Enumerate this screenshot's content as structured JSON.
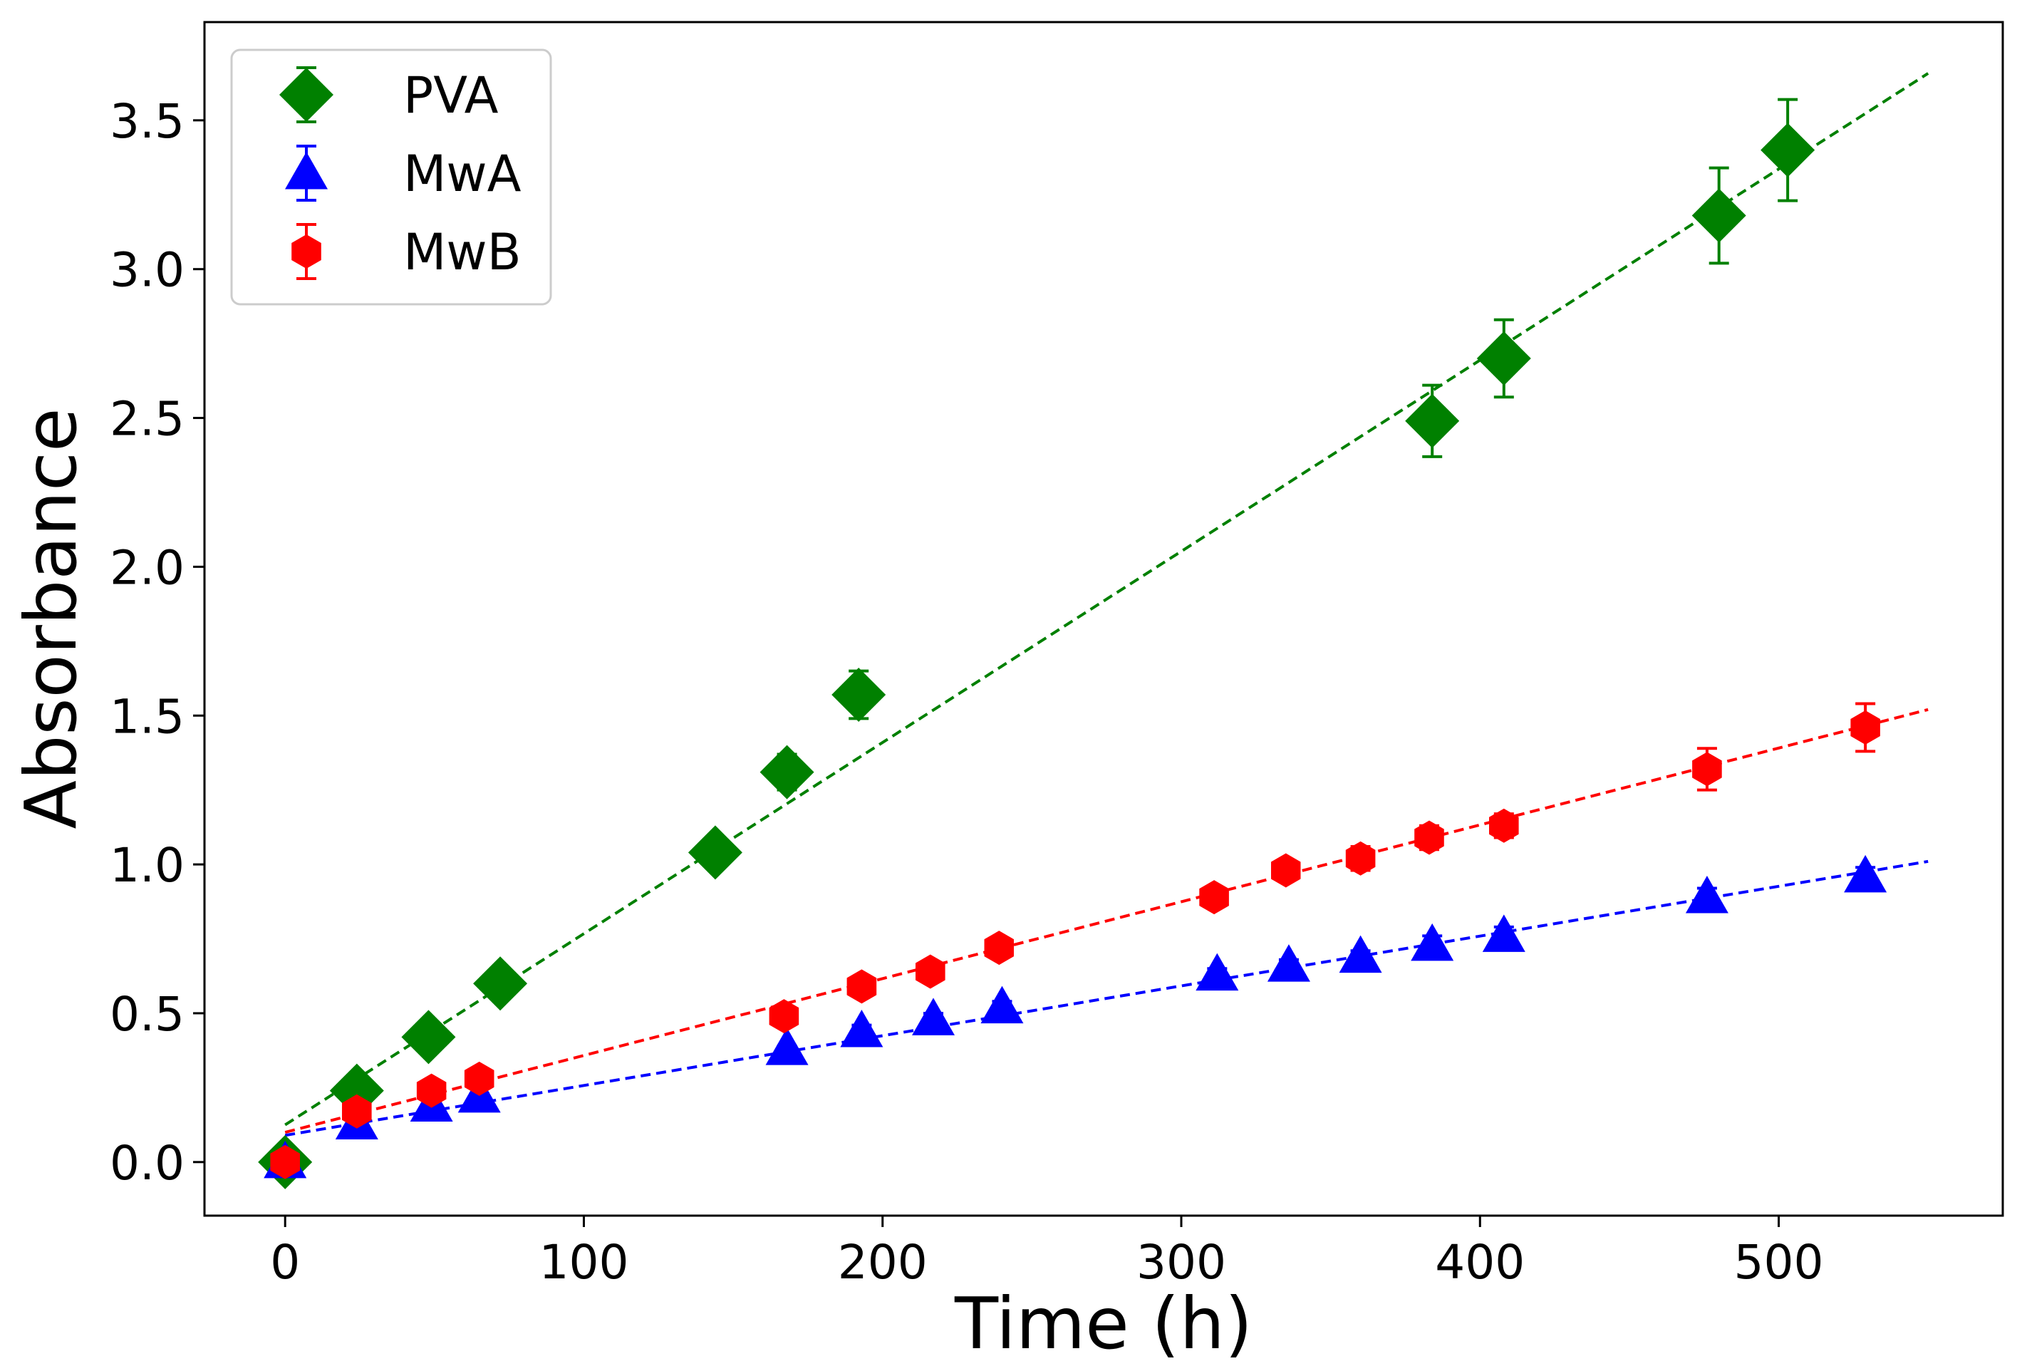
{
  "chart_data": {
    "type": "scatter",
    "title": "",
    "xlabel": "Time (h)",
    "ylabel": "Absorbance",
    "xlim": [
      -27,
      575
    ],
    "ylim": [
      -0.18,
      3.83
    ],
    "xticks": [
      0,
      100,
      200,
      300,
      400,
      500
    ],
    "yticks": [
      0.0,
      0.5,
      1.0,
      1.5,
      2.0,
      2.5,
      3.0,
      3.5
    ],
    "xtick_labels": [
      "0",
      "100",
      "200",
      "300",
      "400",
      "500"
    ],
    "ytick_labels": [
      "0.0",
      "0.5",
      "1.0",
      "1.5",
      "2.0",
      "2.5",
      "3.0",
      "3.5"
    ],
    "grid": false,
    "legend_position": "top-left",
    "series": [
      {
        "name": "PVA",
        "color": "#008000",
        "marker": "diamond",
        "x": [
          0,
          24,
          48,
          72,
          144,
          168,
          192,
          384,
          408,
          480,
          503
        ],
        "y": [
          0.0,
          0.24,
          0.42,
          0.6,
          1.04,
          1.31,
          1.57,
          2.49,
          2.7,
          3.18,
          3.4
        ],
        "err": [
          0.02,
          0.02,
          0.03,
          0.03,
          0.03,
          0.06,
          0.08,
          0.12,
          0.13,
          0.16,
          0.17
        ],
        "fit": {
          "slope": 0.006423,
          "intercept": 0.125,
          "x_range": [
            0,
            550
          ]
        }
      },
      {
        "name": "MwA",
        "color": "#0000ff",
        "marker": "triangle",
        "x": [
          0,
          24,
          49,
          65,
          168,
          193,
          217,
          240,
          312,
          336,
          360,
          384,
          408,
          476,
          529
        ],
        "y": [
          0.0,
          0.13,
          0.19,
          0.22,
          0.38,
          0.44,
          0.48,
          0.52,
          0.63,
          0.66,
          0.69,
          0.73,
          0.76,
          0.89,
          0.96
        ],
        "err": [
          0.01,
          0.01,
          0.01,
          0.01,
          0.01,
          0.02,
          0.02,
          0.02,
          0.02,
          0.02,
          0.02,
          0.03,
          0.03,
          0.03,
          0.03
        ],
        "fit": {
          "slope": 0.001673,
          "intercept": 0.09,
          "x_range": [
            0,
            550
          ]
        }
      },
      {
        "name": "MwB",
        "color": "#ff0000",
        "marker": "hexagon",
        "x": [
          0,
          24,
          49,
          65,
          167,
          193,
          216,
          239,
          311,
          335,
          360,
          383,
          408,
          476,
          529
        ],
        "y": [
          0.0,
          0.17,
          0.24,
          0.28,
          0.49,
          0.59,
          0.64,
          0.72,
          0.89,
          0.98,
          1.02,
          1.09,
          1.13,
          1.32,
          1.46
        ],
        "err": [
          0.01,
          0.02,
          0.02,
          0.02,
          0.02,
          0.02,
          0.02,
          0.02,
          0.03,
          0.03,
          0.04,
          0.04,
          0.04,
          0.07,
          0.08
        ],
        "fit": {
          "slope": 0.002582,
          "intercept": 0.1,
          "x_range": [
            0,
            550
          ]
        }
      }
    ]
  }
}
